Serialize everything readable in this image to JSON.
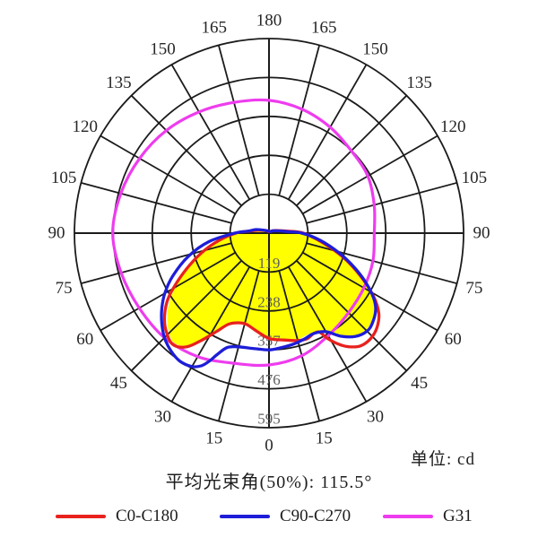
{
  "unit_label": "单位: cd",
  "beam_angle_label": "平均光束角(50%): 115.5°",
  "legend": [
    {
      "name": "C0-C180",
      "color": "#e8211d"
    },
    {
      "name": "C90-C270",
      "color": "#1d1dd8"
    },
    {
      "name": "G31",
      "color": "#ee3cee"
    }
  ],
  "chart_data": {
    "type": "polar",
    "subtype": "photometric-intensity-distribution",
    "unit": "cd",
    "beam_angle_50pct_deg": 115.5,
    "angle_convention": "0 deg at bottom (nadir), 180 deg at top, angle labels mirrored left/right every 15 deg",
    "ring_values": [
      119,
      238,
      357,
      476,
      595
    ],
    "ring_max": 595,
    "angle_tick_step": 15,
    "grid_color": "#1b1b1b",
    "ring_label_color": "#5f5f5f",
    "angle_label_color": "#262626",
    "fill_envelope": {
      "color": "#ffff00",
      "points": [
        [
          -180,
          2
        ],
        [
          -150,
          4
        ],
        [
          -120,
          11
        ],
        [
          -103,
          26
        ],
        [
          -94,
          55
        ],
        [
          -90,
          97
        ],
        [
          -82,
          147
        ],
        [
          -75,
          200
        ],
        [
          -68,
          257
        ],
        [
          -62,
          314
        ],
        [
          -56,
          364
        ],
        [
          -51,
          400
        ],
        [
          -46,
          427
        ],
        [
          -41,
          444
        ],
        [
          -36,
          425
        ],
        [
          -32,
          380
        ],
        [
          -28,
          336
        ],
        [
          -24,
          301
        ],
        [
          -19,
          286
        ],
        [
          -14,
          283
        ],
        [
          -8,
          296
        ],
        [
          0,
          318
        ],
        [
          8,
          326
        ],
        [
          15,
          336
        ],
        [
          21,
          332
        ],
        [
          26,
          334
        ],
        [
          30,
          345
        ],
        [
          34,
          378
        ],
        [
          38,
          400
        ],
        [
          44,
          418
        ],
        [
          49,
          414
        ],
        [
          54,
          399
        ],
        [
          58,
          374
        ],
        [
          63,
          328
        ],
        [
          68,
          278
        ],
        [
          74,
          222
        ],
        [
          82,
          155
        ],
        [
          90,
          96
        ],
        [
          94,
          52
        ],
        [
          103,
          25
        ],
        [
          120,
          11
        ],
        [
          150,
          4
        ]
      ]
    },
    "series": [
      {
        "name": "C0-C180",
        "color": "#e8211d",
        "points": [
          [
            -180,
            4
          ],
          [
            -150,
            7
          ],
          [
            -120,
            16
          ],
          [
            -105,
            35
          ],
          [
            -96,
            60
          ],
          [
            -90,
            102
          ],
          [
            -82,
            152
          ],
          [
            -75,
            205
          ],
          [
            -68,
            262
          ],
          [
            -62,
            318
          ],
          [
            -57,
            368
          ],
          [
            -52,
            405
          ],
          [
            -47,
            432
          ],
          [
            -41,
            450
          ],
          [
            -36,
            430
          ],
          [
            -32,
            385
          ],
          [
            -28,
            340
          ],
          [
            -24,
            305
          ],
          [
            -19,
            290
          ],
          [
            -14,
            287
          ],
          [
            -8,
            300
          ],
          [
            0,
            322
          ],
          [
            8,
            330
          ],
          [
            15,
            340
          ],
          [
            20,
            343
          ],
          [
            24,
            336
          ],
          [
            27,
            340
          ],
          [
            29,
            368
          ],
          [
            32,
            400
          ],
          [
            35,
            424
          ],
          [
            39,
            444
          ],
          [
            44,
            448
          ],
          [
            49,
            438
          ],
          [
            54,
            415
          ],
          [
            59,
            372
          ],
          [
            65,
            308
          ],
          [
            72,
            238
          ],
          [
            80,
            166
          ],
          [
            90,
            105
          ],
          [
            96,
            58
          ],
          [
            105,
            30
          ],
          [
            120,
            15
          ],
          [
            150,
            6
          ]
        ]
      },
      {
        "name": "C90-C270",
        "color": "#1d1dd8",
        "points": [
          [
            -180,
            6
          ],
          [
            -150,
            8
          ],
          [
            -120,
            18
          ],
          [
            -105,
            42
          ],
          [
            -96,
            62
          ],
          [
            -90,
            105
          ],
          [
            -82,
            185
          ],
          [
            -74,
            256
          ],
          [
            -66,
            322
          ],
          [
            -60,
            368
          ],
          [
            -55,
            400
          ],
          [
            -50,
            428
          ],
          [
            -45,
            452
          ],
          [
            -40,
            468
          ],
          [
            -35,
            477
          ],
          [
            -30,
            471
          ],
          [
            -27,
            455
          ],
          [
            -25,
            432
          ],
          [
            -23,
            402
          ],
          [
            -20,
            372
          ],
          [
            -15,
            360
          ],
          [
            -8,
            356
          ],
          [
            0,
            357
          ],
          [
            6,
            352
          ],
          [
            12,
            348
          ],
          [
            18,
            342
          ],
          [
            24,
            336
          ],
          [
            30,
            348
          ],
          [
            35,
            385
          ],
          [
            40,
            412
          ],
          [
            45,
            424
          ],
          [
            49,
            419
          ],
          [
            54,
            403
          ],
          [
            58,
            378
          ],
          [
            63,
            332
          ],
          [
            68,
            282
          ],
          [
            74,
            225
          ],
          [
            82,
            158
          ],
          [
            90,
            100
          ],
          [
            95,
            55
          ],
          [
            105,
            28
          ],
          [
            120,
            14
          ],
          [
            150,
            5
          ]
        ]
      },
      {
        "name": "G31",
        "color": "#ee3cee",
        "points": [
          [
            -180,
            406
          ],
          [
            -165,
            414
          ],
          [
            -150,
            428
          ],
          [
            -135,
            444
          ],
          [
            -120,
            457
          ],
          [
            -105,
            469
          ],
          [
            -90,
            478
          ],
          [
            -75,
            468
          ],
          [
            -60,
            458
          ],
          [
            -45,
            452
          ],
          [
            -30,
            436
          ],
          [
            -15,
            412
          ],
          [
            0,
            403
          ],
          [
            15,
            388
          ],
          [
            30,
            362
          ],
          [
            45,
            344
          ],
          [
            60,
            335
          ],
          [
            75,
            329
          ],
          [
            90,
            322
          ],
          [
            105,
            333
          ],
          [
            120,
            349
          ],
          [
            135,
            356
          ],
          [
            150,
            374
          ],
          [
            165,
            392
          ]
        ]
      }
    ]
  }
}
